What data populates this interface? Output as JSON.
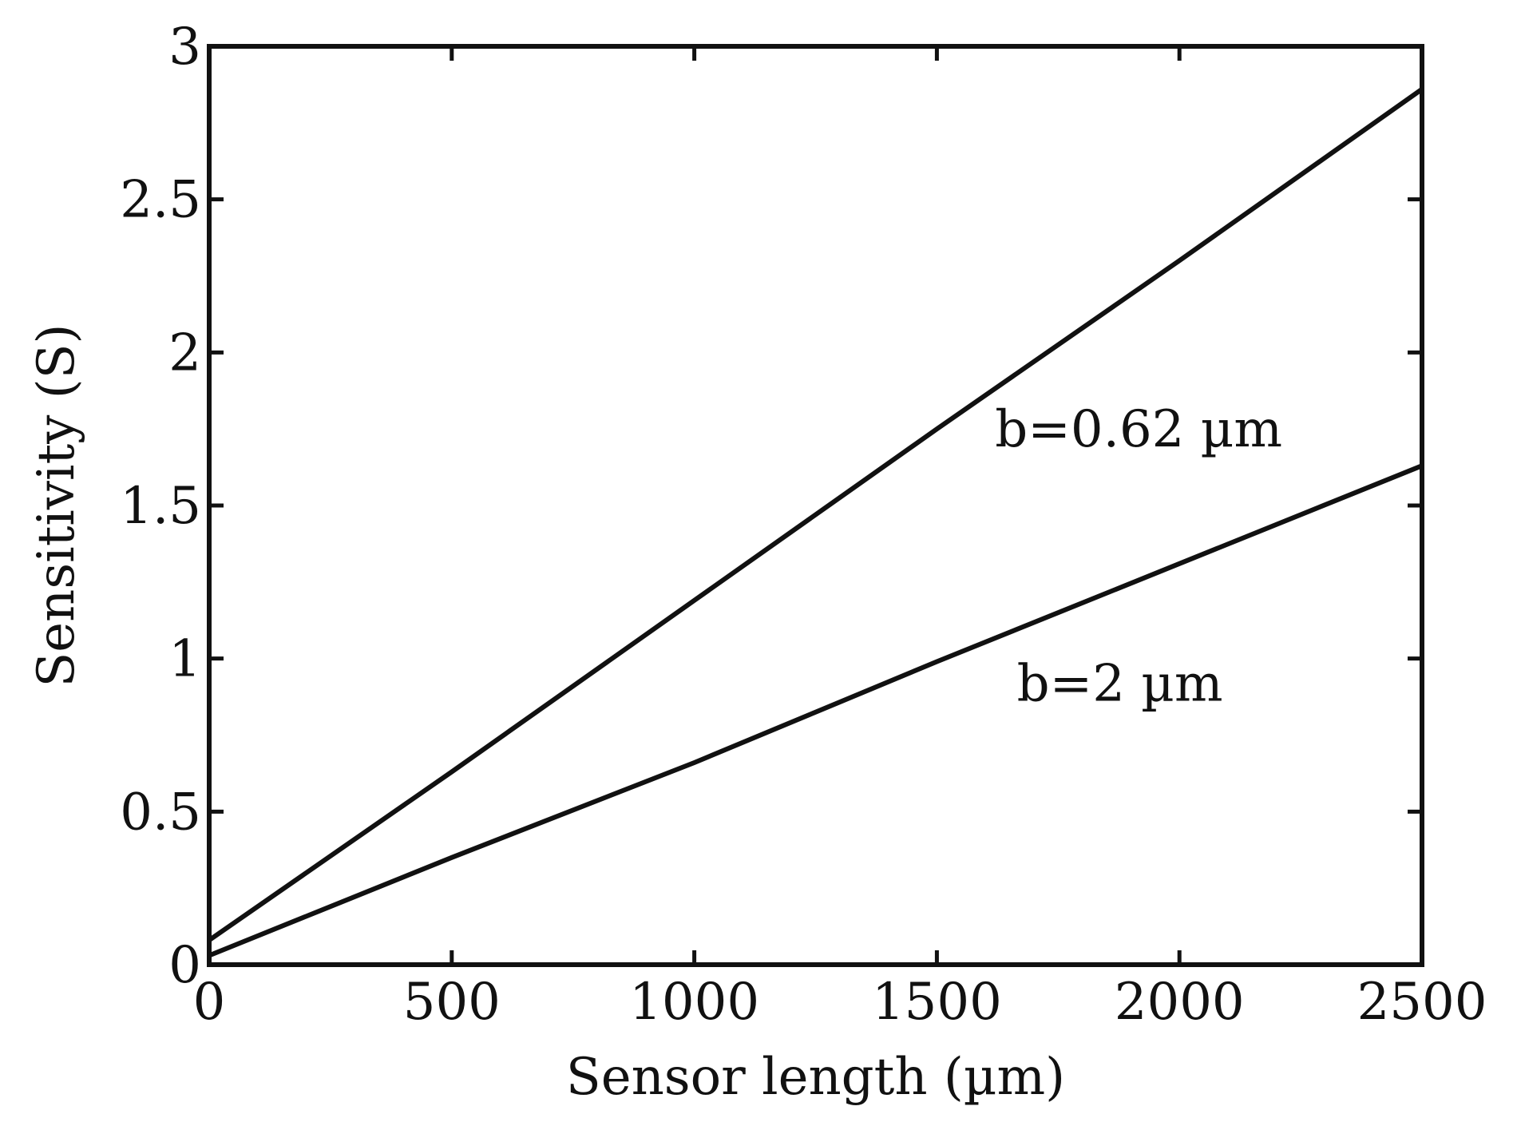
{
  "chart_data": {
    "type": "line",
    "xlabel": "Sensor length (µm)",
    "ylabel": "Sensitivity (S)",
    "xlim": [
      0,
      2500
    ],
    "ylim": [
      0,
      3
    ],
    "xticks": [
      0,
      500,
      1000,
      1500,
      2000,
      2500
    ],
    "yticks": [
      0,
      0.5,
      1,
      1.5,
      2,
      2.5,
      3
    ],
    "xtick_labels": [
      "0",
      "500",
      "1000",
      "1500",
      "2000",
      "2500"
    ],
    "ytick_labels": [
      "0",
      "0.5",
      "1",
      "1.5",
      "2",
      "2.5",
      "3"
    ],
    "grid": false,
    "series": [
      {
        "label": "b=0.62 µm",
        "x": [
          0,
          500,
          1000,
          1500,
          2000,
          2500
        ],
        "y": [
          0.08,
          0.63,
          1.19,
          1.75,
          2.3,
          2.86
        ]
      },
      {
        "label": "b=2 µm",
        "x": [
          0,
          500,
          1000,
          1500,
          2000,
          2500
        ],
        "y": [
          0.03,
          0.35,
          0.66,
          0.99,
          1.31,
          1.63
        ]
      }
    ],
    "annotations": [
      {
        "text": "b=0.62 µm",
        "x": 1620,
        "y": 1.75
      },
      {
        "text": "b=2 µm",
        "x": 1665,
        "y": 0.92
      }
    ]
  }
}
